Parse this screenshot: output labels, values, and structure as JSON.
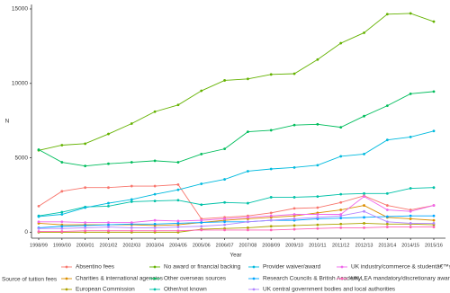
{
  "chart_data": {
    "type": "line",
    "x_label": "Year",
    "y_label": "N",
    "legend_title": "Source of tuition fees",
    "categories": [
      "1998/99",
      "1999/00",
      "2000/01",
      "2001/02",
      "2002/03",
      "2003/04",
      "2004/05",
      "2005/06",
      "2006/07",
      "2007/08",
      "2008/09",
      "2009/10",
      "2010/11",
      "2011/12",
      "2012/13",
      "2013/14",
      "2014/15",
      "2015/16"
    ],
    "ylim": [
      -400,
      15300
    ],
    "yticks": [
      0,
      5000,
      10000,
      15000
    ],
    "grid": false,
    "series": [
      {
        "name": "Absentino fees",
        "color": "#F8766D",
        "values": [
          1750,
          2750,
          3000,
          3000,
          3100,
          3100,
          3200,
          900,
          1000,
          1100,
          1300,
          1600,
          1650,
          2000,
          2450,
          1800,
          1500,
          1800
        ]
      },
      {
        "name": "Charities & international agencies",
        "color": "#DB8E00",
        "values": [
          600,
          500,
          500,
          500,
          500,
          450,
          500,
          650,
          800,
          900,
          1000,
          1100,
          1300,
          1500,
          1800,
          1000,
          900,
          800
        ]
      },
      {
        "name": "European Commission",
        "color": "#AEA200",
        "values": [
          0,
          0,
          0,
          0,
          0,
          0,
          0,
          200,
          250,
          300,
          400,
          450,
          500,
          550,
          600,
          550,
          550,
          500
        ]
      },
      {
        "name": "No award or financial backing",
        "color": "#64B200",
        "values": [
          5500,
          5850,
          5950,
          6600,
          7300,
          8100,
          8550,
          9500,
          10200,
          10300,
          10600,
          10650,
          11600,
          12700,
          13400,
          14650,
          14700,
          14150
        ]
      },
      {
        "name": "Other overseas sources",
        "color": "#00BD5C",
        "values": [
          5550,
          4700,
          4450,
          4600,
          4700,
          4800,
          4700,
          5250,
          5600,
          6750,
          6850,
          7200,
          7250,
          7050,
          7800,
          8500,
          9300,
          9450
        ]
      },
      {
        "name": "Other/not known",
        "color": "#00C1A7",
        "values": [
          1100,
          1350,
          1700,
          1750,
          2050,
          2100,
          2150,
          1850,
          2000,
          1950,
          2350,
          2350,
          2400,
          2550,
          2600,
          2600,
          2950,
          3000
        ]
      },
      {
        "name": "Provider waiver/award",
        "color": "#00BADE",
        "values": [
          1050,
          1200,
          1650,
          1950,
          2200,
          2550,
          2850,
          3250,
          3550,
          4100,
          4250,
          4350,
          4500,
          5100,
          5250,
          6200,
          6400,
          6800
        ]
      },
      {
        "name": "Research Councils & British Academy",
        "color": "#00A6FF",
        "values": [
          300,
          400,
          450,
          500,
          550,
          550,
          600,
          650,
          700,
          700,
          800,
          800,
          900,
          950,
          1000,
          1050,
          1100,
          1100
        ]
      },
      {
        "name": "UK central government bodies and local authorities",
        "color": "#B385FF",
        "values": [
          250,
          250,
          300,
          350,
          300,
          300,
          350,
          400,
          500,
          700,
          800,
          900,
          1000,
          1100,
          1400,
          700,
          600,
          600
        ]
      },
      {
        "name": "UK industry/commerce & studentâ€™s emp",
        "color": "#EF67EB",
        "values": [
          700,
          700,
          650,
          650,
          650,
          800,
          750,
          800,
          900,
          1000,
          1100,
          1200,
          1200,
          1200,
          2400,
          1500,
          1400,
          1800
        ]
      },
      {
        "name": "UK LEA mandatory/discretionary award",
        "color": "#FF63B6",
        "values": [
          50,
          50,
          100,
          100,
          100,
          100,
          100,
          150,
          150,
          150,
          150,
          200,
          250,
          300,
          300,
          350,
          350,
          350
        ]
      }
    ]
  }
}
